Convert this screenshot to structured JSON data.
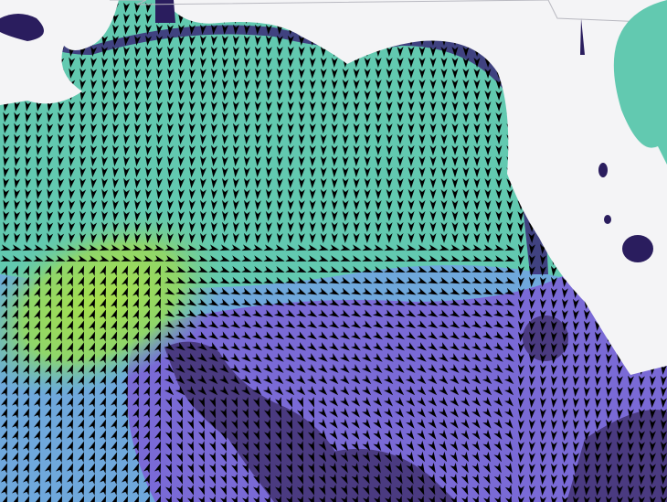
{
  "map": {
    "colors": {
      "land": "#f4f4f6",
      "border": "#b8b8c0",
      "lake": "#2a1d5e",
      "coast_shelf": "#3b2a78",
      "sea_teal": "#62c9b0",
      "sea_teal_light": "#7fd8c0",
      "sea_green": "#a8e04a",
      "sea_blue": "#6fa8dc",
      "sea_purple": "#7a6ad6",
      "sea_dark": "#4a3a80",
      "arrow": "#000000"
    },
    "layers": [
      "wave-height-fill",
      "wave-direction-arrows",
      "land",
      "lakes"
    ]
  }
}
